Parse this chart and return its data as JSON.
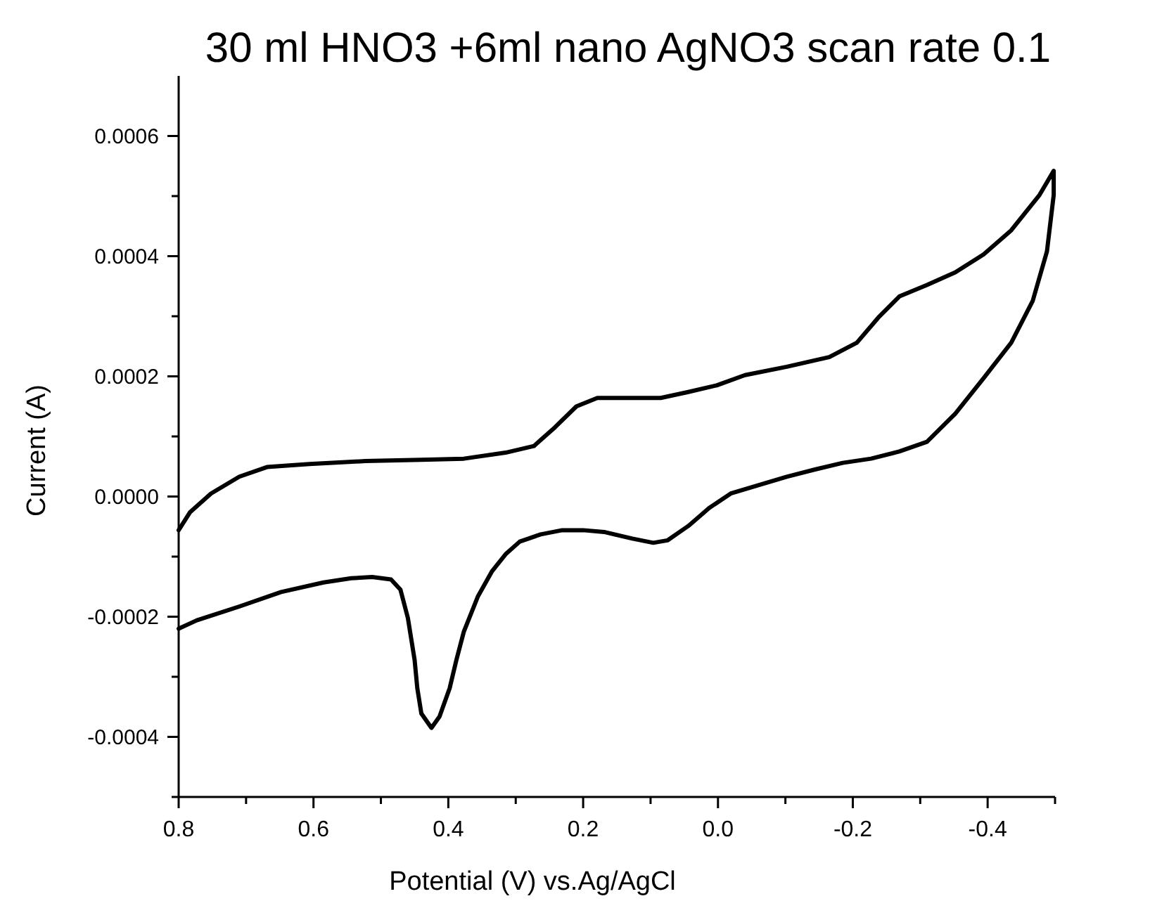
{
  "chart_data": {
    "type": "line",
    "title": "30 ml HNO3 +6ml nano AgNO3 scan rate 0.1",
    "xlabel": "Potential (V) vs.Ag/AgCl",
    "ylabel": "Current (A)",
    "xlim": [
      0.8,
      -0.5
    ],
    "ylim": [
      -0.0005,
      0.0007
    ],
    "xticks": [
      {
        "value": 0.8,
        "label": "0.8"
      },
      {
        "value": 0.7,
        "label": null
      },
      {
        "value": 0.6,
        "label": "0.6"
      },
      {
        "value": 0.5,
        "label": null
      },
      {
        "value": 0.4,
        "label": "0.4"
      },
      {
        "value": 0.3,
        "label": null
      },
      {
        "value": 0.2,
        "label": "0.2"
      },
      {
        "value": 0.1,
        "label": null
      },
      {
        "value": 0,
        "label": "0.0"
      },
      {
        "value": -0.1,
        "label": null
      },
      {
        "value": -0.2,
        "label": "-0.2"
      },
      {
        "value": -0.3,
        "label": null
      },
      {
        "value": -0.4,
        "label": "-0.4"
      },
      {
        "value": -0.5,
        "label": null
      }
    ],
    "yticks": [
      {
        "value": -0.0005,
        "label": null
      },
      {
        "value": -0.0004,
        "label": "-0.0004"
      },
      {
        "value": -0.0003,
        "label": null
      },
      {
        "value": -0.0002,
        "label": "-0.0002"
      },
      {
        "value": -0.0001,
        "label": null
      },
      {
        "value": 0,
        "label": "0.0000"
      },
      {
        "value": 0.0001,
        "label": null
      },
      {
        "value": 0.0002,
        "label": "0.0002"
      },
      {
        "value": 0.0003,
        "label": null
      },
      {
        "value": 0.0004,
        "label": "0.0004"
      },
      {
        "value": 0.0005,
        "label": null
      },
      {
        "value": 0.0006,
        "label": "0.0006"
      }
    ],
    "grid": false,
    "marker": "none",
    "line_style": "solid",
    "series": [
      {
        "color": "#000000",
        "x": [
          0.8,
          0.783,
          0.752,
          0.71,
          0.669,
          0.606,
          0.523,
          0.44,
          0.377,
          0.315,
          0.273,
          0.242,
          0.21,
          0.179,
          0.127,
          0.085,
          0.044,
          0.002,
          -0.04,
          -0.102,
          -0.165,
          -0.206,
          -0.238,
          -0.269,
          -0.31,
          -0.352,
          -0.394,
          -0.435,
          -0.477,
          -0.498,
          -0.498,
          -0.488,
          -0.467,
          -0.435,
          -0.394,
          -0.352,
          -0.31,
          -0.269,
          -0.227,
          -0.185,
          -0.144,
          -0.102,
          -0.06,
          -0.019,
          0.013,
          0.044,
          0.075,
          0.096,
          0.127,
          0.169,
          0.2,
          0.231,
          0.263,
          0.294,
          0.315,
          0.335,
          0.356,
          0.377,
          0.388,
          0.398,
          0.413,
          0.425,
          0.44,
          0.446,
          0.45,
          0.46,
          0.471,
          0.485,
          0.513,
          0.544,
          0.585,
          0.648,
          0.71,
          0.773,
          0.8
        ],
        "values": [
          -5.6e-05,
          -2.6e-05,
          5e-06,
          3.3e-05,
          4.9e-05,
          5.4e-05,
          5.9e-05,
          6.1e-05,
          6.3e-05,
          7.3e-05,
          8.4e-05,
          0.000115,
          0.00015,
          0.000164,
          0.000164,
          0.000164,
          0.000174,
          0.000185,
          0.000202,
          0.000216,
          0.000232,
          0.000256,
          0.000298,
          0.000333,
          0.000352,
          0.000373,
          0.000403,
          0.000443,
          0.000502,
          0.000542,
          0.000502,
          0.000408,
          0.000326,
          0.000256,
          0.000197,
          0.000138,
          9.1e-05,
          7.5e-05,
          6.3e-05,
          5.6e-05,
          4.5e-05,
          3.3e-05,
          1.9e-05,
          5e-06,
          -1.9e-05,
          -4.9e-05,
          -7.3e-05,
          -7.7e-05,
          -7e-05,
          -5.9e-05,
          -5.6e-05,
          -5.6e-05,
          -6.3e-05,
          -7.5e-05,
          -9.6e-05,
          -0.000124,
          -0.000166,
          -0.000225,
          -0.000272,
          -0.000319,
          -0.000366,
          -0.000385,
          -0.000361,
          -0.000319,
          -0.000272,
          -0.000202,
          -0.000155,
          -0.000138,
          -0.000134,
          -0.000136,
          -0.000143,
          -0.000159,
          -0.000183,
          -0.000206,
          -0.00022
        ]
      }
    ]
  }
}
